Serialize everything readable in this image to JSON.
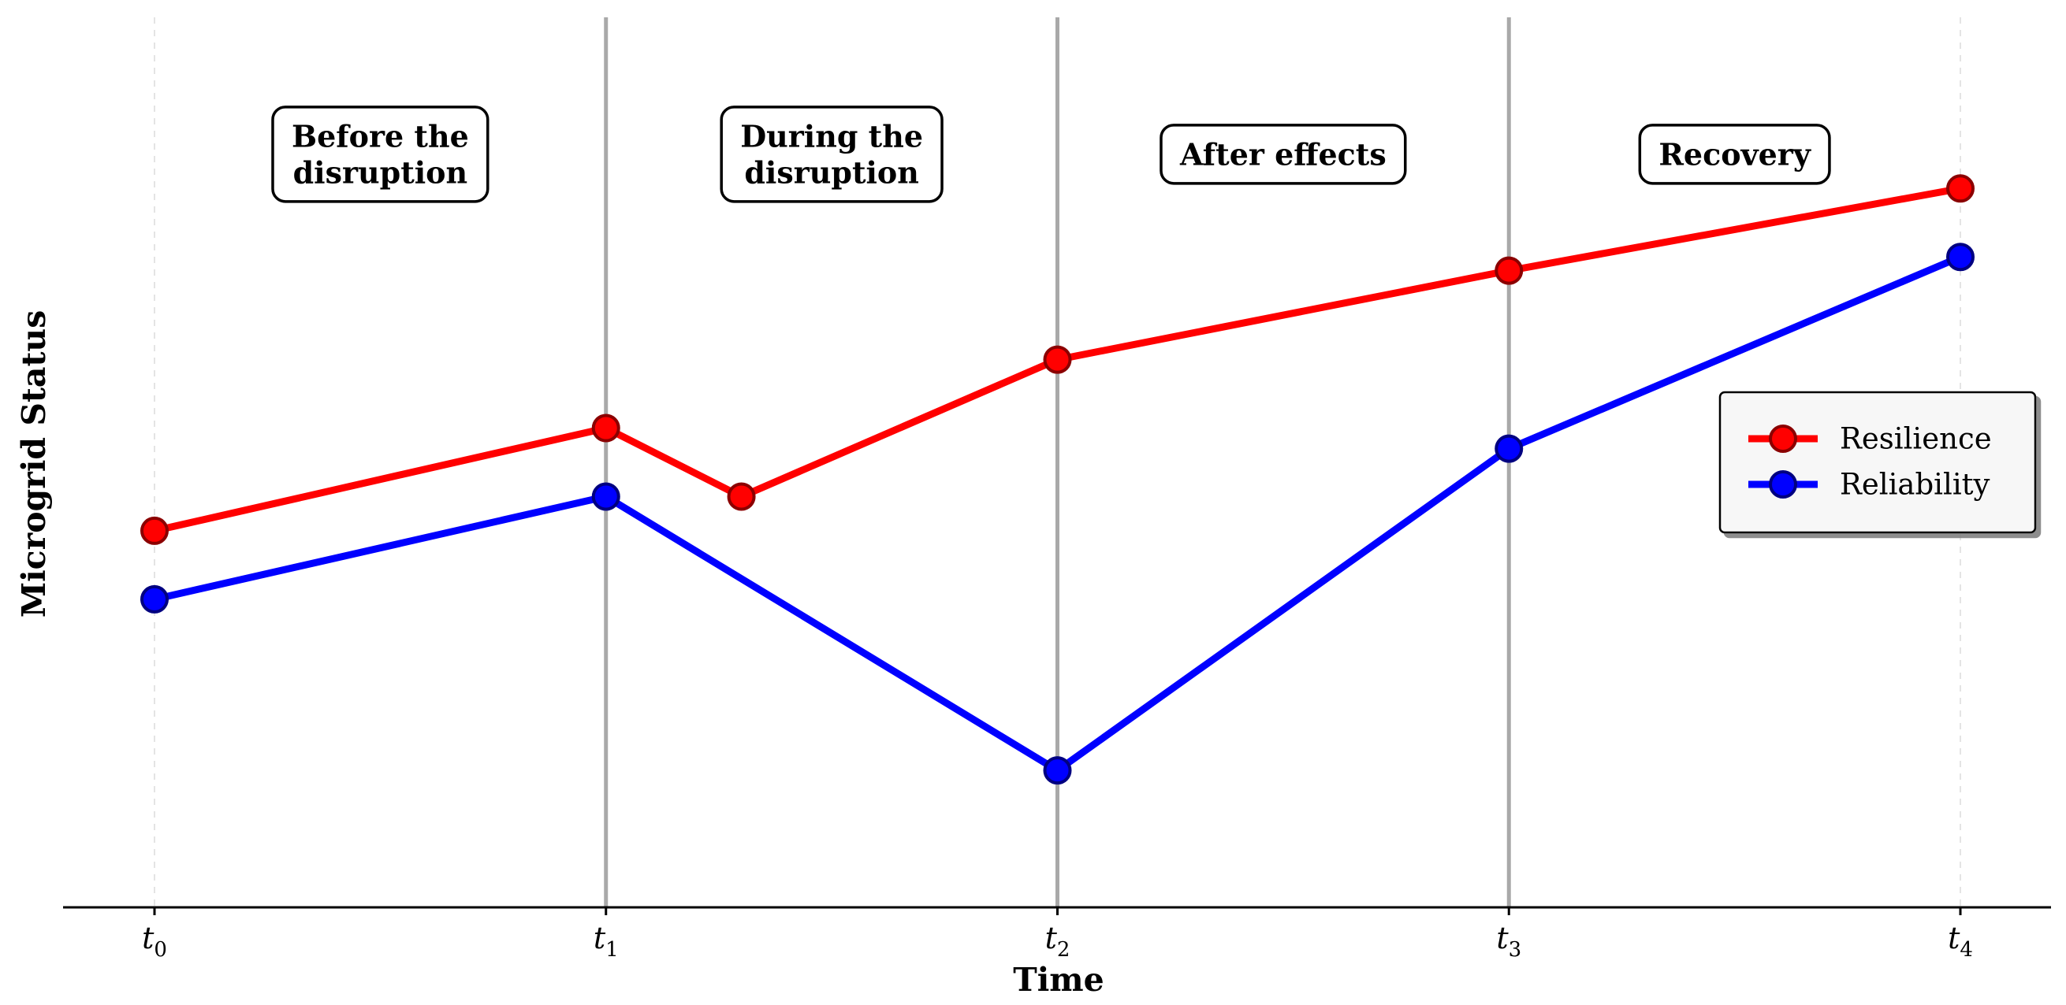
{
  "chart_data": {
    "type": "line",
    "x": [
      0,
      1,
      1.3,
      2,
      3,
      4
    ],
    "xticks": [
      {
        "value": 0,
        "base": "t",
        "sub": "0"
      },
      {
        "value": 1,
        "base": "t",
        "sub": "1"
      },
      {
        "value": 2,
        "base": "t",
        "sub": "2"
      },
      {
        "value": 3,
        "base": "t",
        "sub": "3"
      },
      {
        "value": 4,
        "base": "t",
        "sub": "4"
      }
    ],
    "xlabel": "Time",
    "ylabel": "Microgrid Status",
    "xlim": [
      -0.2,
      4.2
    ],
    "ylim": [
      0,
      1.3
    ],
    "y_ticks_shown": false,
    "grid": false,
    "phase_boundaries": [
      1,
      2,
      3
    ],
    "phases": [
      {
        "lines": [
          "Before the",
          "disruption"
        ],
        "x_center": 0.5
      },
      {
        "lines": [
          "During the",
          "disruption"
        ],
        "x_center": 1.5
      },
      {
        "lines": [
          "After effects"
        ],
        "x_center": 2.5
      },
      {
        "lines": [
          "Recovery"
        ],
        "x_center": 3.5
      }
    ],
    "phase_label_y": 1.1,
    "series": [
      {
        "name": "Resilience",
        "color": "#ff0000",
        "marker_edge": "#8b0000",
        "points": [
          [
            0,
            0.55
          ],
          [
            1,
            0.7
          ],
          [
            1.3,
            0.6
          ],
          [
            2,
            0.8
          ],
          [
            3,
            0.93
          ],
          [
            4,
            1.05
          ]
        ]
      },
      {
        "name": "Reliability",
        "color": "#0000ff",
        "marker_edge": "#000080",
        "points": [
          [
            0,
            0.45
          ],
          [
            1,
            0.6
          ],
          [
            2,
            0.2
          ],
          [
            3,
            0.67
          ],
          [
            4,
            0.95
          ]
        ]
      }
    ],
    "legend": {
      "position": "right"
    }
  }
}
